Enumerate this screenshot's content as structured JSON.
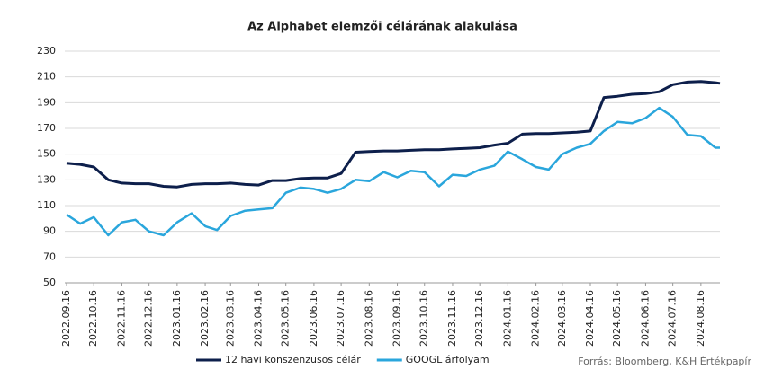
{
  "chart_data": {
    "type": "line",
    "title": "Az Alphabet elemzői célárának alakulása",
    "source": "Forrás: Bloomberg, K&H Értékpapír",
    "x": [
      "2022.09.16",
      "2022.10.01",
      "2022.10.16",
      "2022.11.01",
      "2022.11.16",
      "2022.12.01",
      "2022.12.16",
      "2023.01.01",
      "2023.01.16",
      "2023.02.01",
      "2023.02.16",
      "2023.03.01",
      "2023.03.16",
      "2023.04.01",
      "2023.04.16",
      "2023.05.01",
      "2023.05.16",
      "2023.06.01",
      "2023.06.16",
      "2023.07.01",
      "2023.07.16",
      "2023.08.01",
      "2023.08.16",
      "2023.09.01",
      "2023.09.16",
      "2023.10.01",
      "2023.10.16",
      "2023.11.01",
      "2023.11.16",
      "2023.12.01",
      "2023.12.16",
      "2024.01.01",
      "2024.01.16",
      "2024.02.01",
      "2024.02.16",
      "2024.03.01",
      "2024.03.16",
      "2024.04.01",
      "2024.04.16",
      "2024.05.01",
      "2024.05.16",
      "2024.06.01",
      "2024.06.16",
      "2024.07.01",
      "2024.07.16",
      "2024.08.01",
      "2024.08.16",
      "2024.09.01",
      "2024.09.06"
    ],
    "series": [
      {
        "name": "12 havi konszenzusos célár",
        "color": "#0d1f4b",
        "values": [
          143,
          142,
          140,
          130,
          127.5,
          127,
          127,
          125,
          124.5,
          126.5,
          127,
          127,
          127.5,
          126.5,
          126,
          129.5,
          129.5,
          131,
          131.5,
          131.5,
          135,
          151.5,
          152,
          152.5,
          152.5,
          153,
          153.5,
          153.5,
          154,
          154.5,
          155,
          157,
          158.5,
          165.5,
          166,
          166,
          166.5,
          167,
          168,
          194,
          195,
          196.5,
          197,
          198.5,
          204,
          206,
          206.5,
          205.5,
          205
        ]
      },
      {
        "name": "GOOGL árfolyam",
        "color": "#2aa6dc",
        "values": [
          103,
          96,
          101,
          87,
          97,
          99,
          90,
          87,
          97,
          104,
          94,
          91,
          102,
          106,
          107,
          108,
          120,
          124,
          123,
          120,
          123,
          130,
          129,
          136,
          132,
          137,
          136,
          125,
          134,
          133,
          138,
          141,
          152,
          146,
          140,
          138,
          150,
          155,
          158,
          168,
          175,
          174,
          178,
          186,
          179,
          165,
          164,
          155,
          155
        ]
      }
    ],
    "xlim": [
      "2022.09.14",
      "2024.09.06"
    ],
    "xticks": [
      "2022.09.16",
      "2022.10.16",
      "2022.11.16",
      "2022.12.16",
      "2023.01.16",
      "2023.02.16",
      "2023.03.16",
      "2023.04.16",
      "2023.05.16",
      "2023.06.16",
      "2023.07.16",
      "2023.08.16",
      "2023.09.16",
      "2023.10.16",
      "2023.11.16",
      "2023.12.16",
      "2024.01.16",
      "2024.02.16",
      "2024.03.16",
      "2024.04.16",
      "2024.05.16",
      "2024.06.16",
      "2024.07.16",
      "2024.08.16"
    ],
    "ylim": [
      50,
      230
    ],
    "yticks": [
      50,
      70,
      90,
      110,
      130,
      150,
      170,
      190,
      210,
      230
    ],
    "grid": true,
    "legend": "bottom"
  }
}
